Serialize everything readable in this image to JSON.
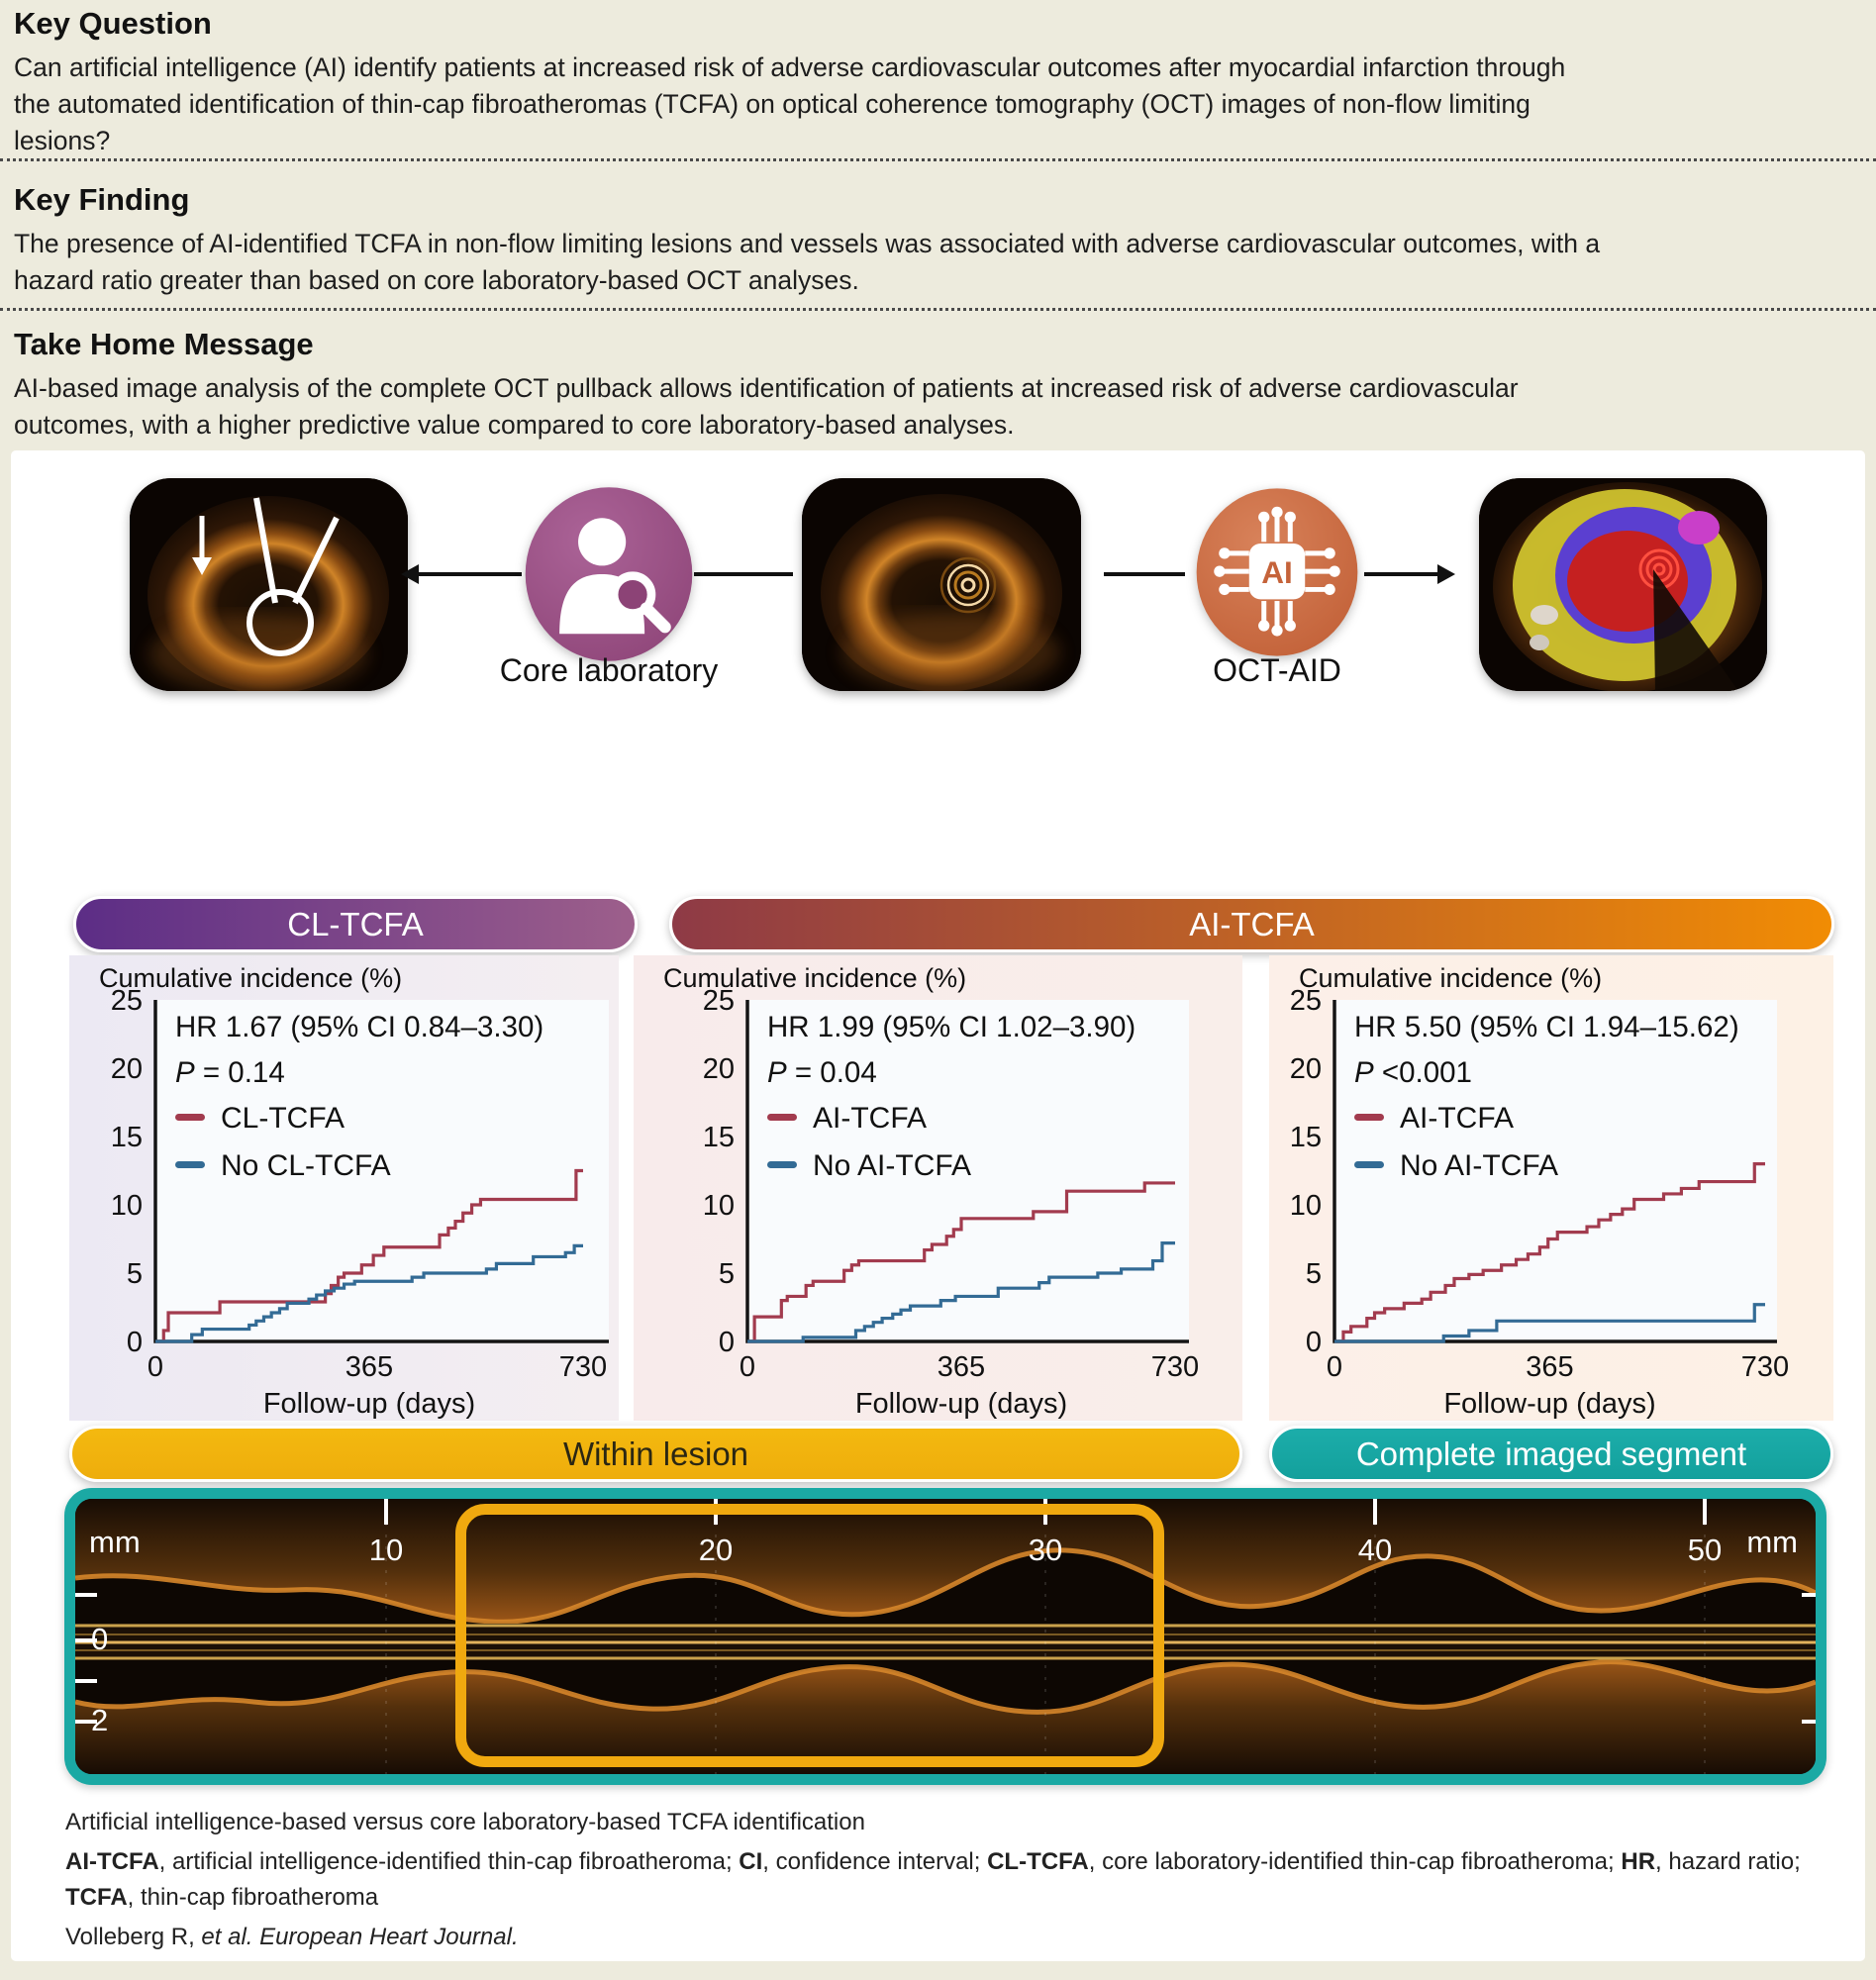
{
  "header": {
    "sections": [
      {
        "title": "Key Question",
        "body": "Can artificial intelligence (AI) identify patients at increased risk of adverse cardiovascular outcomes after myocardial infarction through\nthe automated identification of thin-cap fibroatheromas (TCFA) on optical coherence tomography (OCT) images of non-flow limiting\nlesions?"
      },
      {
        "title": "Key Finding",
        "body": "The presence of AI-identified TCFA in non-flow limiting lesions and vessels was associated with adverse cardiovascular outcomes, with a\nhazard ratio greater than based on core laboratory-based OCT analyses."
      },
      {
        "title": "Take Home Message",
        "body": "AI-based image analysis of the complete OCT pullback allows identification of patients at increased risk of adverse cardiovascular\noutcomes, with a higher predictive value compared to core laboratory-based analyses."
      }
    ]
  },
  "pipeline": {
    "core_lab_label": "Core laboratory",
    "ai_label": "OCT-AID",
    "ai_chip_text": "AI"
  },
  "banners": {
    "cl": "CL-TCFA",
    "ai": "AI-TCFA",
    "within": "Within lesion",
    "complete": "Complete imaged segment"
  },
  "colors": {
    "series_red": "#a23b4e",
    "series_blue": "#336b95",
    "accent_teal": "#1ba9a4",
    "accent_yellow": "#f0a90f",
    "cl_gradient": [
      "#5c2d86",
      "#9d5f8b"
    ],
    "ai_gradient": [
      "#8e3a46",
      "#f18c04"
    ]
  },
  "chart_data": [
    {
      "type": "line",
      "variant": "step",
      "title": "Cumulative incidence (%)",
      "xlabel": "Follow-up (days)",
      "x_ticks": [
        0,
        365,
        730
      ],
      "y_ticks": [
        0,
        5,
        10,
        15,
        20,
        25
      ],
      "xlim": [
        0,
        730
      ],
      "ylim": [
        0,
        25
      ],
      "grid": false,
      "legend_position": "upper-left",
      "hr_text": "HR 1.67 (95% CI 0.84–3.30)",
      "p_text": "P = 0.14",
      "series": [
        {
          "name": "CL-TCFA",
          "color": "#a23b4e",
          "points": [
            [
              0,
              0
            ],
            [
              14,
              0.8
            ],
            [
              22,
              2.1
            ],
            [
              110,
              2.9
            ],
            [
              290,
              3.5
            ],
            [
              300,
              4.1
            ],
            [
              312,
              4.7
            ],
            [
              322,
              5.0
            ],
            [
              352,
              5.6
            ],
            [
              372,
              6.3
            ],
            [
              390,
              6.9
            ],
            [
              485,
              7.8
            ],
            [
              500,
              8.3
            ],
            [
              512,
              8.8
            ],
            [
              525,
              9.4
            ],
            [
              540,
              10.0
            ],
            [
              555,
              10.4
            ],
            [
              718,
              12.5
            ]
          ]
        },
        {
          "name": "No CL-TCFA",
          "color": "#336b95",
          "points": [
            [
              0,
              0
            ],
            [
              62,
              0.5
            ],
            [
              80,
              0.9
            ],
            [
              160,
              1.2
            ],
            [
              172,
              1.5
            ],
            [
              185,
              1.8
            ],
            [
              198,
              2.1
            ],
            [
              212,
              2.4
            ],
            [
              225,
              2.8
            ],
            [
              262,
              3.1
            ],
            [
              275,
              3.4
            ],
            [
              290,
              3.7
            ],
            [
              305,
              3.9
            ],
            [
              322,
              4.2
            ],
            [
              340,
              4.4
            ],
            [
              438,
              4.7
            ],
            [
              458,
              5.0
            ],
            [
              565,
              5.3
            ],
            [
              582,
              5.7
            ],
            [
              645,
              6.2
            ],
            [
              700,
              6.5
            ],
            [
              715,
              7.0
            ]
          ]
        }
      ]
    },
    {
      "type": "line",
      "variant": "step",
      "title": "Cumulative incidence (%)",
      "xlabel": "Follow-up (days)",
      "x_ticks": [
        0,
        365,
        730
      ],
      "y_ticks": [
        0,
        5,
        10,
        15,
        20,
        25
      ],
      "xlim": [
        0,
        730
      ],
      "ylim": [
        0,
        25
      ],
      "grid": false,
      "legend_position": "upper-left",
      "hr_text": "HR 1.99 (95% CI 1.02–3.90)",
      "p_text": "P = 0.04",
      "series": [
        {
          "name": "AI-TCFA",
          "color": "#a23b4e",
          "points": [
            [
              0,
              0
            ],
            [
              12,
              1.8
            ],
            [
              58,
              3.0
            ],
            [
              68,
              3.3
            ],
            [
              100,
              4.1
            ],
            [
              112,
              4.4
            ],
            [
              165,
              5.2
            ],
            [
              178,
              5.6
            ],
            [
              190,
              5.9
            ],
            [
              302,
              6.7
            ],
            [
              315,
              7.1
            ],
            [
              340,
              7.7
            ],
            [
              352,
              8.2
            ],
            [
              365,
              9.0
            ],
            [
              488,
              9.5
            ],
            [
              545,
              11.0
            ],
            [
              678,
              11.6
            ]
          ]
        },
        {
          "name": "No AI-TCFA",
          "color": "#336b95",
          "points": [
            [
              0,
              0
            ],
            [
              95,
              0.3
            ],
            [
              185,
              0.8
            ],
            [
              200,
              1.1
            ],
            [
              215,
              1.4
            ],
            [
              230,
              1.7
            ],
            [
              248,
              2.0
            ],
            [
              262,
              2.3
            ],
            [
              278,
              2.6
            ],
            [
              330,
              3.0
            ],
            [
              355,
              3.3
            ],
            [
              428,
              3.9
            ],
            [
              498,
              4.3
            ],
            [
              515,
              4.7
            ],
            [
              598,
              5.0
            ],
            [
              638,
              5.3
            ],
            [
              692,
              5.9
            ],
            [
              708,
              7.2
            ]
          ]
        }
      ]
    },
    {
      "type": "line",
      "variant": "step",
      "title": "Cumulative incidence (%)",
      "xlabel": "Follow-up (days)",
      "x_ticks": [
        0,
        365,
        730
      ],
      "y_ticks": [
        0,
        5,
        10,
        15,
        20,
        25
      ],
      "xlim": [
        0,
        730
      ],
      "ylim": [
        0,
        25
      ],
      "grid": false,
      "legend_position": "upper-left",
      "hr_text": "HR 5.50 (95% CI 1.94–15.62)",
      "p_text": "P <0.001",
      "series": [
        {
          "name": "AI-TCFA",
          "color": "#a23b4e",
          "points": [
            [
              0,
              0
            ],
            [
              15,
              0.7
            ],
            [
              28,
              1.1
            ],
            [
              55,
              1.7
            ],
            [
              68,
              2.1
            ],
            [
              85,
              2.4
            ],
            [
              118,
              2.8
            ],
            [
              148,
              3.1
            ],
            [
              163,
              3.6
            ],
            [
              188,
              4.1
            ],
            [
              203,
              4.6
            ],
            [
              228,
              4.9
            ],
            [
              252,
              5.2
            ],
            [
              283,
              5.6
            ],
            [
              308,
              6.0
            ],
            [
              328,
              6.4
            ],
            [
              348,
              6.9
            ],
            [
              362,
              7.5
            ],
            [
              378,
              8.0
            ],
            [
              428,
              8.4
            ],
            [
              448,
              8.9
            ],
            [
              468,
              9.3
            ],
            [
              488,
              9.7
            ],
            [
              508,
              10.4
            ],
            [
              558,
              10.8
            ],
            [
              588,
              11.2
            ],
            [
              618,
              11.7
            ],
            [
              712,
              13.0
            ]
          ]
        },
        {
          "name": "No AI-TCFA",
          "color": "#336b95",
          "points": [
            [
              0,
              0
            ],
            [
              185,
              0.4
            ],
            [
              228,
              0.8
            ],
            [
              275,
              1.5
            ],
            [
              712,
              2.7
            ]
          ]
        }
      ]
    }
  ],
  "pullback": {
    "unit": "mm",
    "x_ticks": [
      10,
      20,
      30,
      40,
      50
    ],
    "depth_labels": [
      "0",
      "2"
    ]
  },
  "footer": {
    "caption": "Artificial intelligence-based versus core laboratory-based TCFA identification",
    "abbreviations": [
      {
        "abbr": "AI-TCFA",
        "def": "artificial intelligence-identified thin-cap fibroatheroma"
      },
      {
        "abbr": "CI",
        "def": "confidence interval"
      },
      {
        "abbr": "CL-TCFA",
        "def": "core laboratory-identified thin-cap fibroatheroma"
      },
      {
        "abbr": "HR",
        "def": "hazard ratio"
      },
      {
        "abbr": "TCFA",
        "def": "thin-cap fibroatheroma"
      }
    ],
    "citation_plain": "Volleberg R,",
    "citation_italic": " et al. European Heart Journal."
  }
}
